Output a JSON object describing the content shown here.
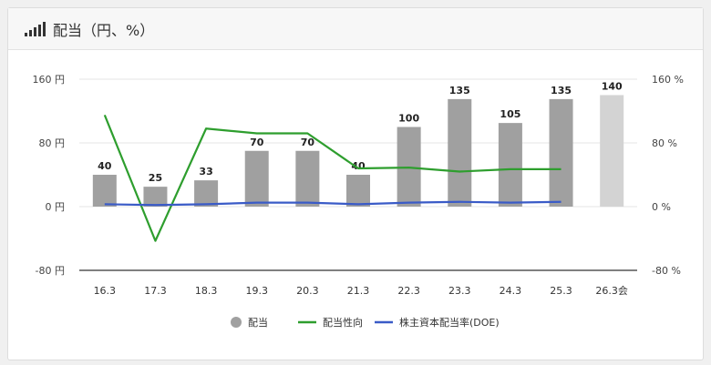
{
  "header": {
    "title": "配当（円、%）",
    "icon": "signal-bars-icon"
  },
  "chart_data": {
    "type": "bar",
    "categories": [
      "16.3",
      "17.3",
      "18.3",
      "19.3",
      "20.3",
      "21.3",
      "22.3",
      "23.3",
      "24.3",
      "25.3",
      "26.3会"
    ],
    "series": [
      {
        "name": "配当",
        "type": "bar",
        "axis": "left",
        "values": [
          40,
          25,
          33,
          70,
          70,
          40,
          100,
          135,
          105,
          135,
          140
        ],
        "labels": [
          "40",
          "25",
          "33",
          "70",
          "70",
          "40",
          "100",
          "135",
          "105",
          "135",
          "140"
        ],
        "color": "#a0a0a0",
        "forecast_color": "#d3d3d3",
        "forecast_index": 10
      },
      {
        "name": "配当性向",
        "type": "line",
        "axis": "right",
        "values": [
          115,
          -43,
          98,
          92,
          92,
          48,
          49,
          44,
          47,
          47,
          null
        ],
        "color": "#2e9e2e"
      },
      {
        "name": "株主資本配当率(DOE)",
        "type": "line",
        "axis": "right",
        "values": [
          3,
          2,
          3,
          5,
          5,
          3,
          5,
          6,
          5,
          6,
          null
        ],
        "color": "#3a5bc7"
      }
    ],
    "y_left": {
      "ticks": [
        "160 円",
        "80 円",
        "0 円",
        "-80 円"
      ],
      "range": [
        -80,
        160
      ]
    },
    "y_right": {
      "ticks": [
        "160 %",
        "80 %",
        "0 %",
        "-80 %"
      ],
      "range": [
        -80,
        160
      ]
    },
    "legend": [
      "配当",
      "配当性向",
      "株主資本配当率(DOE)"
    ],
    "legend_position": "bottom"
  }
}
